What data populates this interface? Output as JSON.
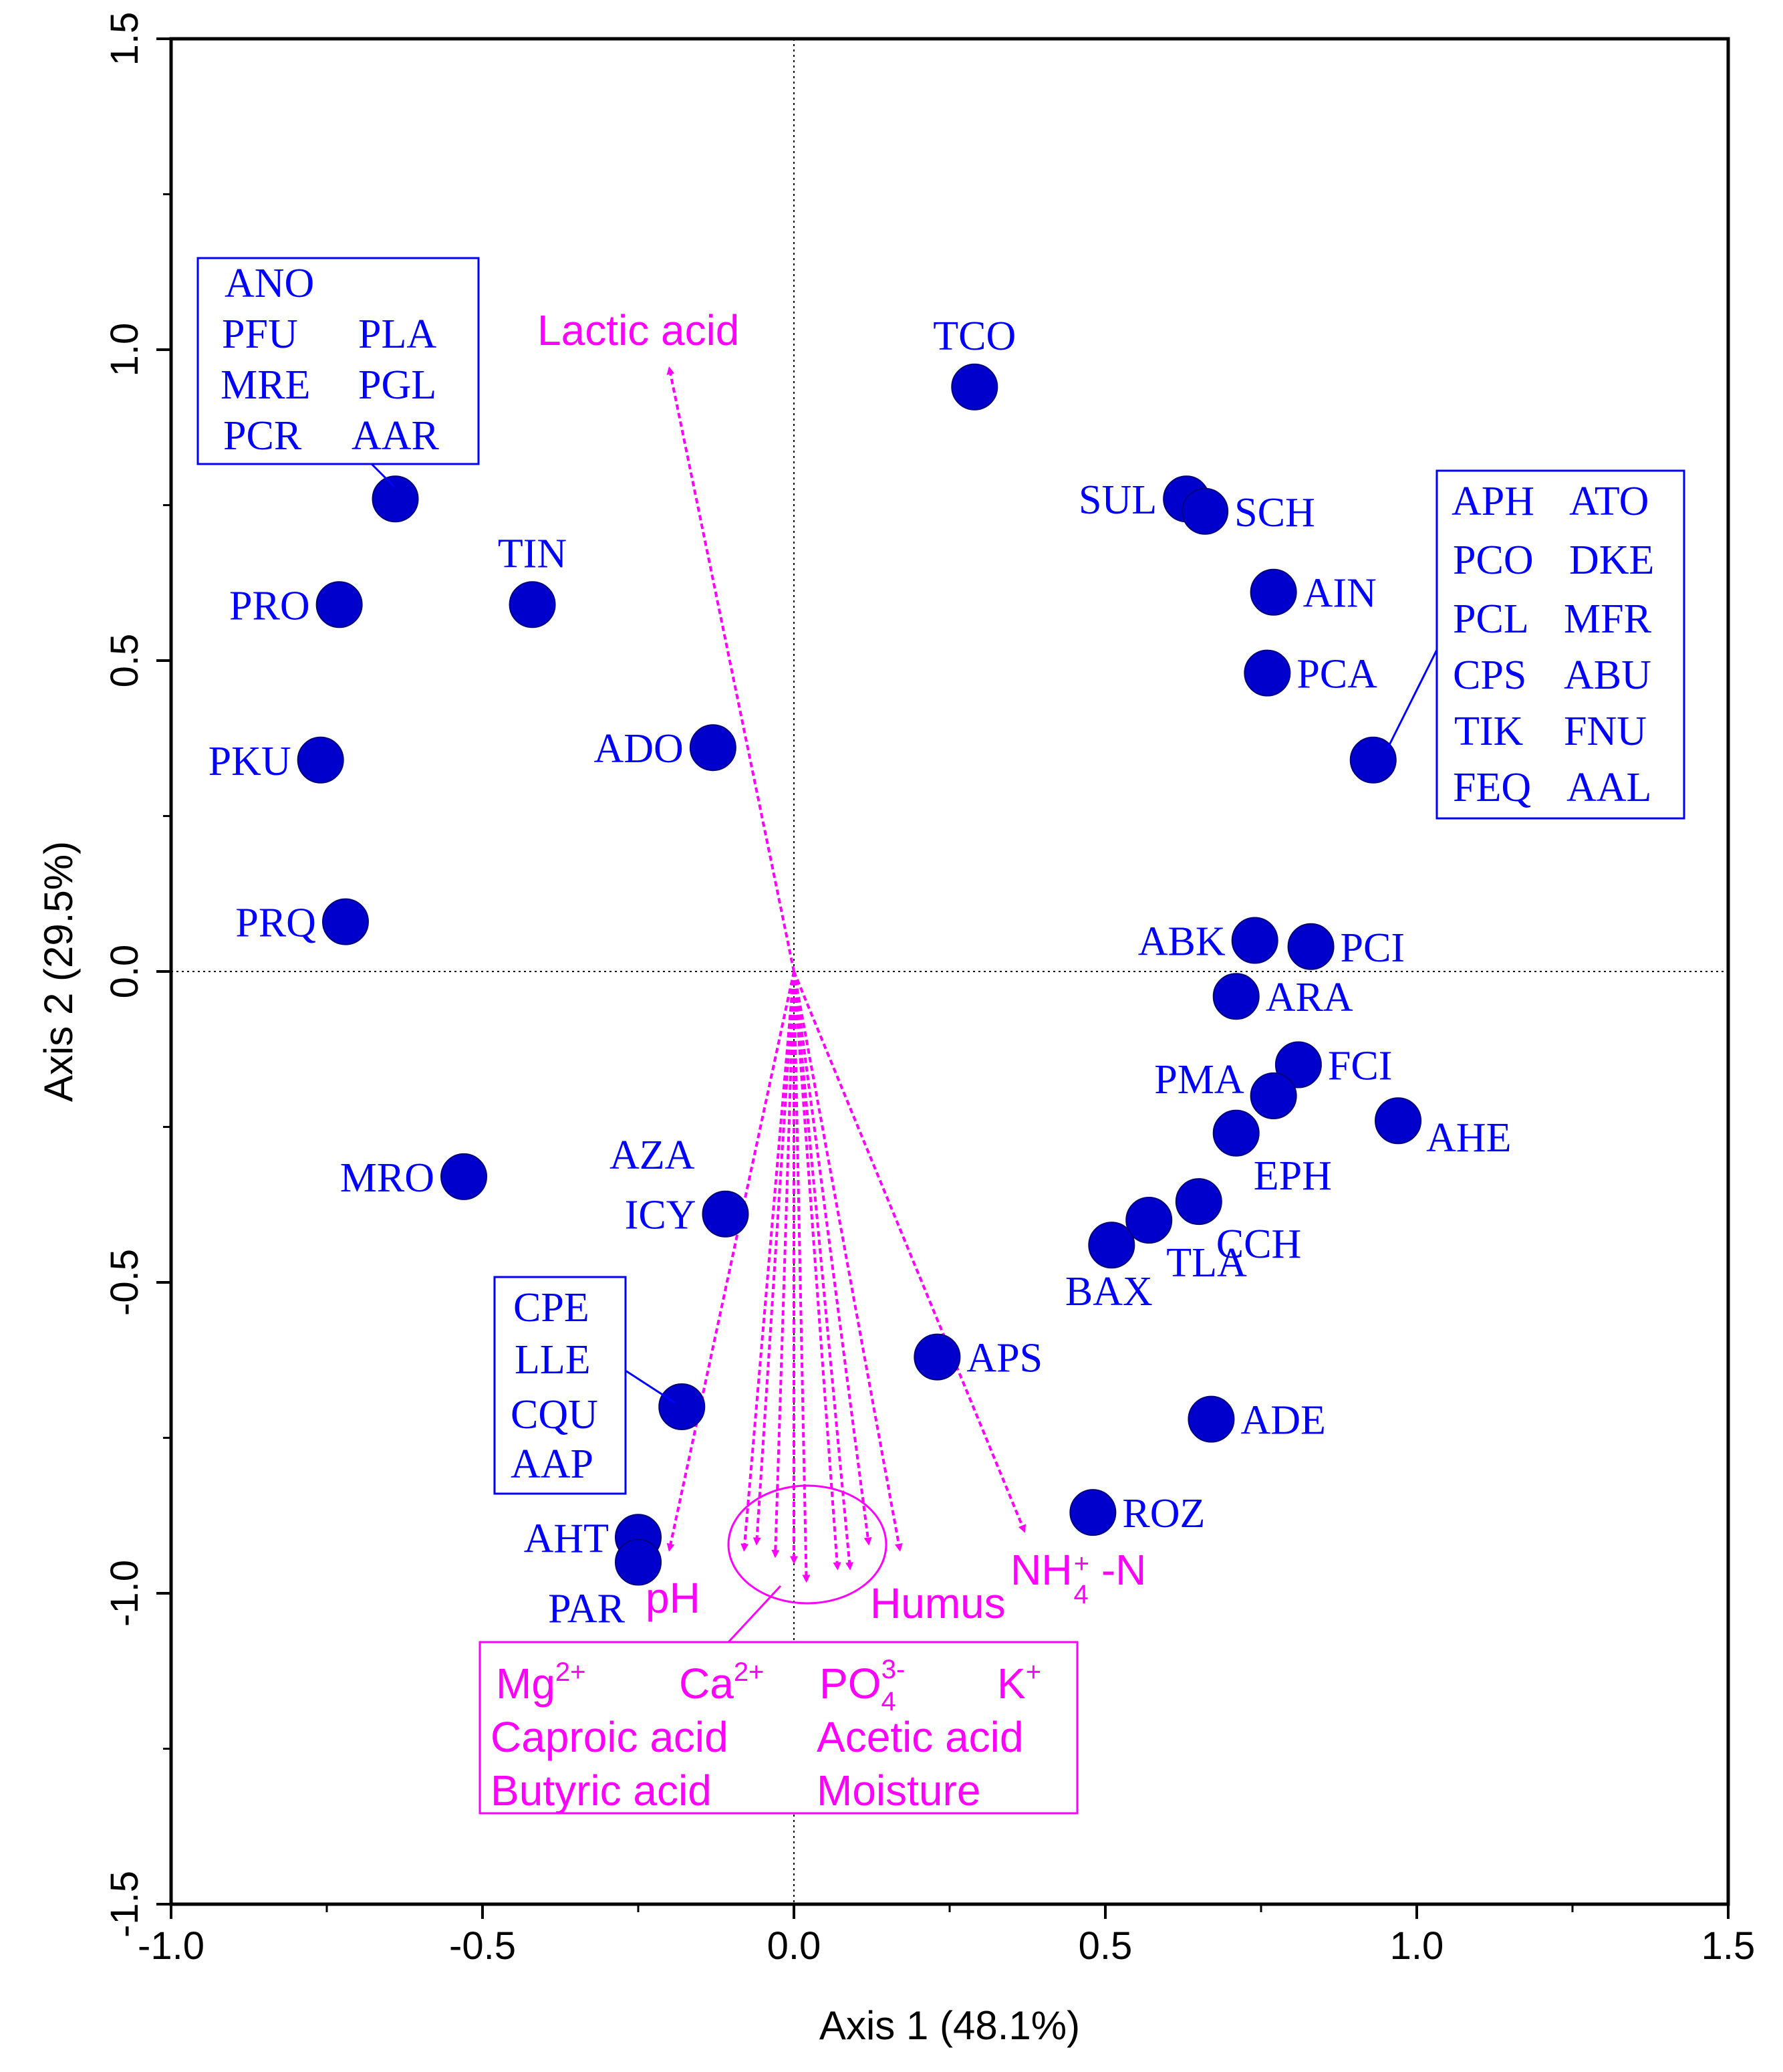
{
  "chart_data": {
    "type": "scatter",
    "subtype": "ordination biplot",
    "xlabel": "Axis 1 (48.1%)",
    "ylabel": "Axis 2 (29.5%)",
    "xlim": [
      -1.0,
      1.5
    ],
    "ylim": [
      -1.5,
      1.5
    ],
    "xticks": [
      "-1.0",
      "-0.5",
      "0.0",
      "0.5",
      "1.0",
      "1.5"
    ],
    "yticks": [
      "-1.5",
      "-1.0",
      "-0.5",
      "0.0",
      "0.5",
      "1.0",
      "1.5"
    ],
    "reference_lines": {
      "x": 0.0,
      "y": 0.0,
      "style": "dotted"
    },
    "colors": {
      "points": "#0000ff",
      "point_fill": "#0000cc",
      "vectors": "#ff00ff",
      "axes": "#000000"
    },
    "species": [
      {
        "label": "TCO",
        "x": 0.29,
        "y": 0.94,
        "label_pos": "above"
      },
      {
        "label": "SUL",
        "x": 0.63,
        "y": 0.76,
        "label_pos": "left"
      },
      {
        "label": "SCH",
        "x": 0.66,
        "y": 0.74,
        "label_pos": "right"
      },
      {
        "label": "AIN",
        "x": 0.77,
        "y": 0.61,
        "label_pos": "right"
      },
      {
        "label": "PCA",
        "x": 0.76,
        "y": 0.48,
        "label_pos": "right"
      },
      {
        "label": "",
        "x": 0.93,
        "y": 0.34,
        "label_pos": "none"
      },
      {
        "label": "",
        "x": -0.64,
        "y": 0.76,
        "label_pos": "none"
      },
      {
        "label": "TIN",
        "x": -0.42,
        "y": 0.59,
        "label_pos": "above"
      },
      {
        "label": "PRO",
        "x": -0.73,
        "y": 0.59,
        "label_pos": "left"
      },
      {
        "label": "ADO",
        "x": -0.13,
        "y": 0.36,
        "label_pos": "left"
      },
      {
        "label": "PKU",
        "x": -0.76,
        "y": 0.34,
        "label_pos": "left"
      },
      {
        "label": "PRQ",
        "x": -0.72,
        "y": 0.08,
        "label_pos": "left"
      },
      {
        "label": "ABK",
        "x": 0.74,
        "y": 0.05,
        "label_pos": "left"
      },
      {
        "label": "PCI",
        "x": 0.83,
        "y": 0.04,
        "label_pos": "right"
      },
      {
        "label": "ARA",
        "x": 0.71,
        "y": -0.04,
        "label_pos": "right"
      },
      {
        "label": "FCI",
        "x": 0.81,
        "y": -0.15,
        "label_pos": "right"
      },
      {
        "label": "PMA",
        "x": 0.77,
        "y": -0.2,
        "label_pos": "left-high"
      },
      {
        "label": "EPH",
        "x": 0.71,
        "y": -0.26,
        "label_pos": "below-right"
      },
      {
        "label": "AHE",
        "x": 0.97,
        "y": -0.24,
        "label_pos": "right-low"
      },
      {
        "label": "CCH",
        "x": 0.65,
        "y": -0.37,
        "label_pos": "below-right"
      },
      {
        "label": "TLA",
        "x": 0.57,
        "y": -0.4,
        "label_pos": "below-right"
      },
      {
        "label": "BAX",
        "x": 0.51,
        "y": -0.44,
        "label_pos": "below"
      },
      {
        "label": "MRO",
        "x": -0.53,
        "y": -0.33,
        "label_pos": "left"
      },
      {
        "label": "ICY",
        "x": -0.11,
        "y": -0.39,
        "label_pos": "left"
      },
      {
        "label": "APS",
        "x": 0.23,
        "y": -0.62,
        "label_pos": "right"
      },
      {
        "label": "ADE",
        "x": 0.67,
        "y": -0.72,
        "label_pos": "right"
      },
      {
        "label": "",
        "x": -0.18,
        "y": -0.7,
        "label_pos": "none"
      },
      {
        "label": "ROZ",
        "x": 0.48,
        "y": -0.87,
        "label_pos": "right"
      },
      {
        "label": "AHT",
        "x": -0.25,
        "y": -0.91,
        "label_pos": "left"
      },
      {
        "label": "PAR",
        "x": -0.25,
        "y": -0.95,
        "label_pos": "below-left"
      }
    ],
    "species_text": {
      "AZA": "AZA"
    },
    "species_groups": [
      {
        "name": "group-left-top",
        "entries": [
          "ANO",
          "PFU",
          "PLA",
          "MRE",
          "PGL",
          "PCR",
          "AAR"
        ]
      },
      {
        "name": "group-right",
        "entries": [
          "APH",
          "ATO",
          "PCO",
          "DKE",
          "PCL",
          "MFR",
          "CPS",
          "ABU",
          "TIK",
          "FNU",
          "FEQ",
          "AAL"
        ]
      },
      {
        "name": "group-left-bottom",
        "entries": [
          "CPE",
          "LLE",
          "CQU",
          "AAP"
        ]
      }
    ],
    "environmental_vectors": [
      {
        "label": "Lactic acid",
        "x": -0.2,
        "y": 0.97
      },
      {
        "label": "pH",
        "x": -0.2,
        "y": -0.93
      },
      {
        "label": "NH4+-N",
        "x": 0.37,
        "y": -0.9
      },
      {
        "label": "Humus",
        "x": 0.17,
        "y": -0.93
      },
      {
        "label": "",
        "x": -0.08,
        "y": -0.93
      },
      {
        "label": "",
        "x": -0.06,
        "y": -0.92
      },
      {
        "label": "",
        "x": -0.03,
        "y": -0.94
      },
      {
        "label": "",
        "x": 0.0,
        "y": -0.95
      },
      {
        "label": "",
        "x": 0.02,
        "y": -0.98
      },
      {
        "label": "",
        "x": 0.07,
        "y": -0.96
      },
      {
        "label": "",
        "x": 0.09,
        "y": -0.96
      },
      {
        "label": "",
        "x": 0.12,
        "y": -0.92
      }
    ],
    "nh4_label": {
      "main": "NH",
      "sub": "4",
      "sup": "+",
      "suffix": " -N"
    },
    "cluster_legend": {
      "mg": "Mg",
      "mg_sup": "2+",
      "ca": "Ca",
      "ca_sup": "2+",
      "po": "PO",
      "po_sub": "4",
      "po_sup": "3-",
      "k": "K",
      "k_sup": "+",
      "caproic": "Caproic acid",
      "acetic": "Acetic acid",
      "butyric": "Butyric acid",
      "moisture": "Moisture"
    }
  }
}
